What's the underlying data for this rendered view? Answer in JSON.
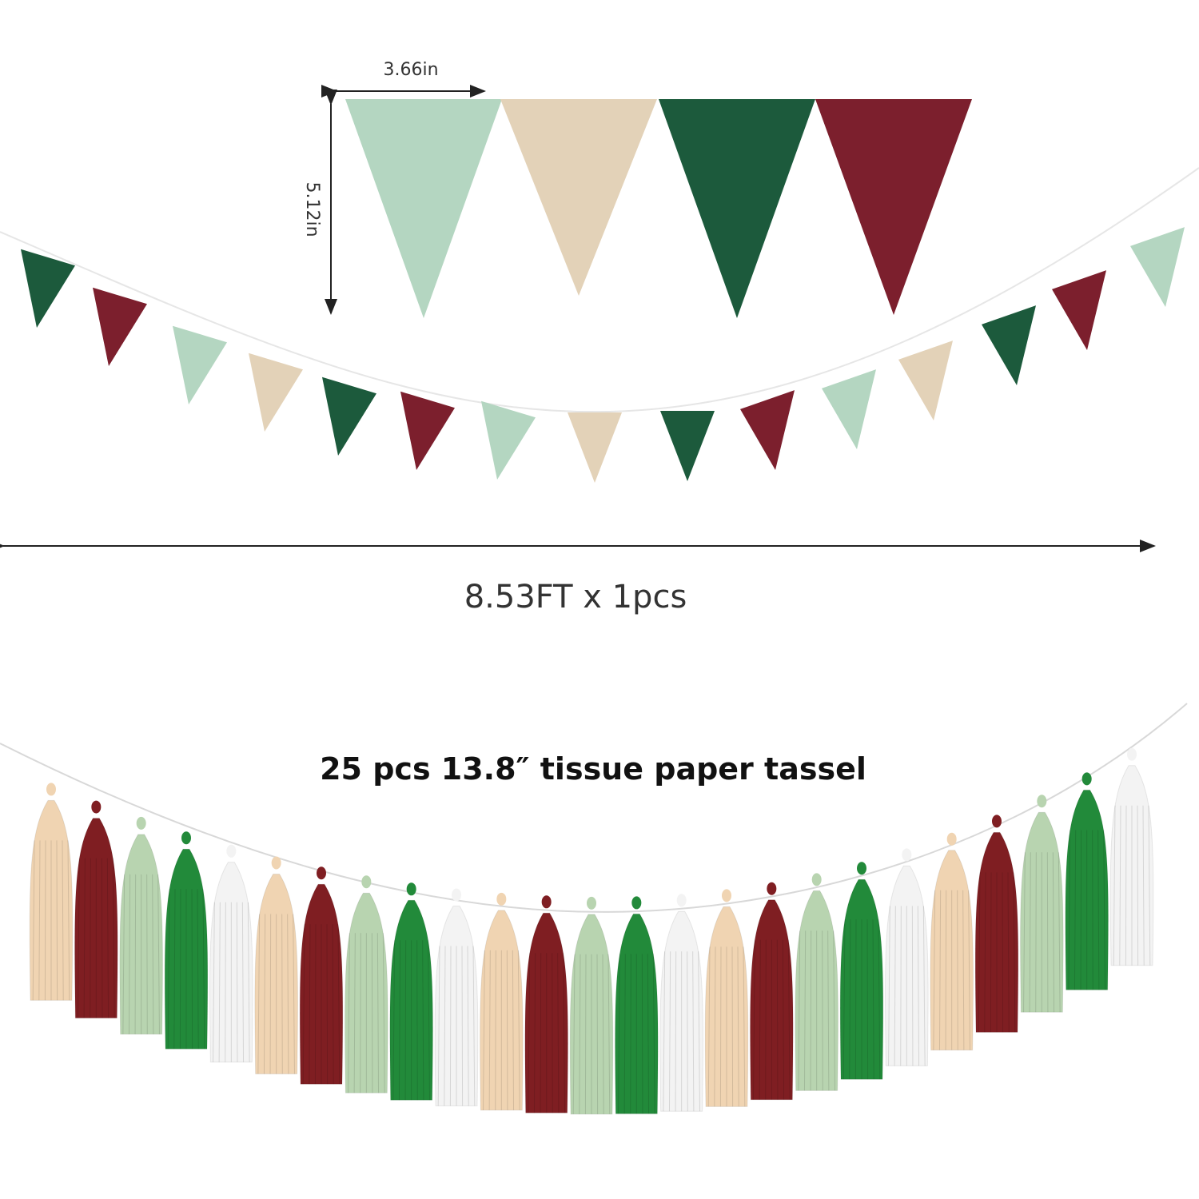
{
  "dimensions": {
    "flag_width": "3.66in",
    "flag_height": "5.12in",
    "garland_length": "8.53FT x 1pcs"
  },
  "tassel_caption": "25 pcs 13.8″ tissue paper  tassel",
  "colors": {
    "sage": "#b4d6c1",
    "champagne": "#e3d2b8",
    "forest": "#1c5a3c",
    "burgundy": "#7c1f2d",
    "tassel_cream": "#f0d4b2",
    "tassel_burgundy": "#7f1e22",
    "tassel_sage": "#b8d4b0",
    "tassel_green": "#228a3a",
    "tassel_white": "#f3f3f3"
  },
  "pennant_colors": [
    "forest",
    "burgundy",
    "sage",
    "champagne"
  ],
  "tassel_colors": [
    "tassel_cream",
    "tassel_burgundy",
    "tassel_sage",
    "tassel_green",
    "tassel_white"
  ],
  "tassel_count": 25
}
